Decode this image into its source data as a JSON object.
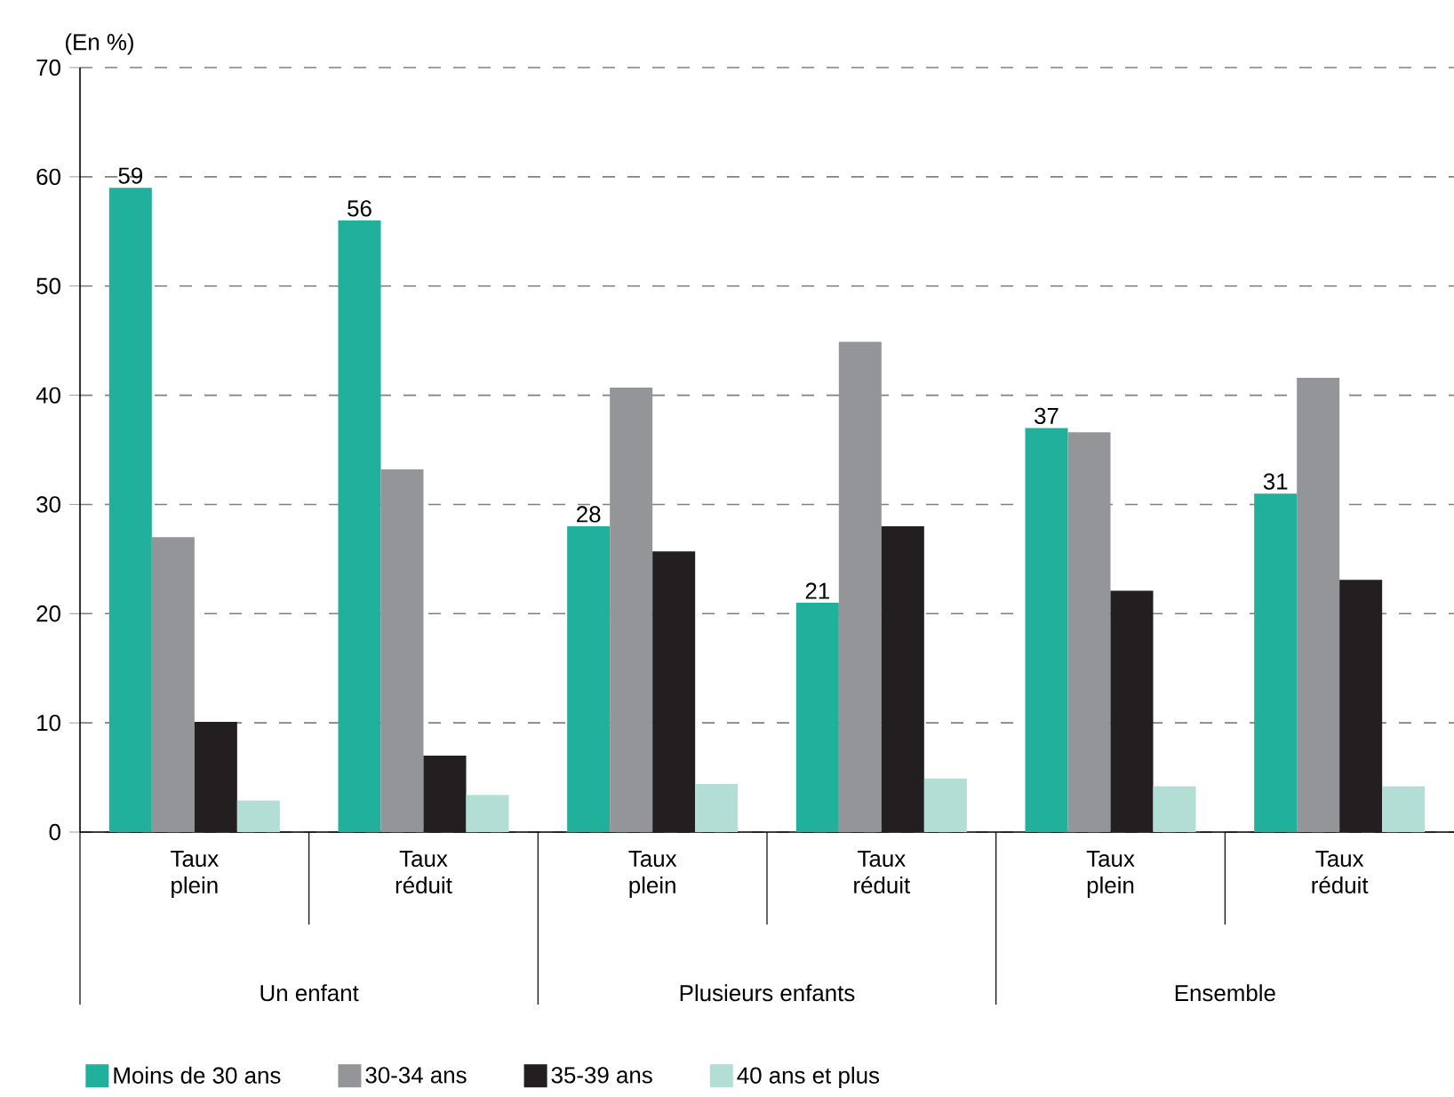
{
  "chart_data": {
    "type": "bar",
    "ylabel": "(En %)",
    "categories": [
      "Taux plein",
      "Taux réduit",
      "Taux plein",
      "Taux réduit",
      "Taux plein",
      "Taux réduit"
    ],
    "annotations": [
      "Un enfant",
      "Plusieurs enfants",
      "Ensemble"
    ],
    "series": [
      {
        "name": "Moins de 30 ans",
        "color": "#21b09b",
        "values": [
          59,
          56,
          28,
          21,
          37,
          31
        ],
        "value_labels": [
          "59",
          "56",
          "28",
          "21",
          "37",
          "31"
        ]
      },
      {
        "name": "30-34 ans",
        "color": "#939598",
        "values": [
          27,
          33.2,
          40.7,
          44.9,
          36.6,
          41.6
        ]
      },
      {
        "name": "35-39 ans",
        "color": "#231f20",
        "values": [
          10.1,
          7,
          25.7,
          28,
          22.1,
          23.1
        ]
      },
      {
        "name": "40 ans et plus",
        "color": "#b3ded6",
        "values": [
          2.9,
          3.4,
          4.4,
          4.9,
          4.2,
          4.2
        ]
      }
    ],
    "ylim": [
      0,
      70
    ],
    "yticks": [
      0,
      10,
      20,
      30,
      40,
      50,
      60,
      70
    ],
    "grid": "y",
    "legend": "bottom"
  }
}
